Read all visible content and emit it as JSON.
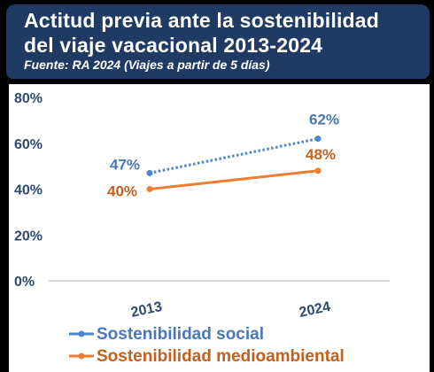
{
  "header": {
    "title_line1": "Actitud previa ante la sostenibilidad",
    "title_line2": "del viaje vacacional 2013-2024",
    "subtitle": "Fuente: RA 2024 (Viajes a partir de 5 días)"
  },
  "colors": {
    "header_bg": "#1f3b63",
    "social": "#4a86d0",
    "social_label": "#4a77b8",
    "medioambiental": "#ed7d31",
    "medioambiental_label": "#c5601a",
    "axis_text": "#2d4a72"
  },
  "chart_data": {
    "type": "line",
    "categories": [
      "2013",
      "2024"
    ],
    "series": [
      {
        "name": "Sostenibilidad social",
        "values": [
          47,
          62
        ],
        "labels": [
          "47%",
          "62%"
        ],
        "style": "dotted"
      },
      {
        "name": "Sostenibilidad medioambiental",
        "values": [
          40,
          48
        ],
        "labels": [
          "40%",
          "48%"
        ],
        "style": "solid"
      }
    ],
    "ylim": [
      0,
      80
    ],
    "yticks": [
      "0%",
      "20%",
      "40%",
      "60%",
      "80%"
    ],
    "ytick_values": [
      0,
      20,
      40,
      60,
      80
    ],
    "grid": false,
    "legend_position": "bottom-left",
    "title": "",
    "xlabel": "",
    "ylabel": ""
  }
}
